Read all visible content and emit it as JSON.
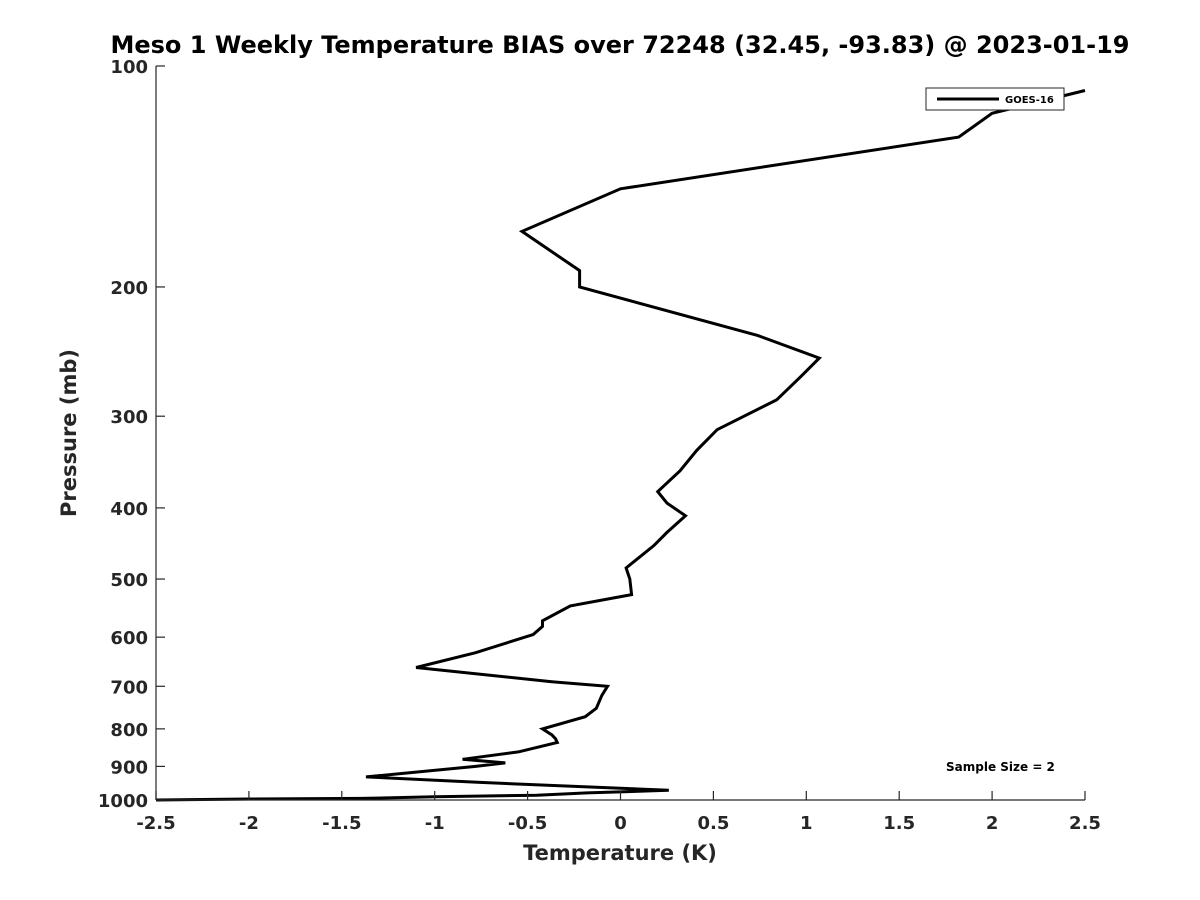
{
  "chart_data": {
    "type": "line",
    "title": "Meso 1 Weekly Temperature BIAS over 72248 (32.45, -93.83) @ 2023-01-19",
    "xlabel": "Temperature (K)",
    "ylabel": "Pressure (mb)",
    "xlim": [
      -2.5,
      2.5
    ],
    "ylim": [
      100,
      1000
    ],
    "y_scale": "log",
    "y_reversed": true,
    "x_ticks": [
      "-2.5",
      "-2",
      "-1.5",
      "-1",
      "-0.5",
      "0",
      "0.5",
      "1",
      "1.5",
      "2",
      "2.5"
    ],
    "x_tick_values": [
      -2.5,
      -2,
      -1.5,
      -1,
      -0.5,
      0,
      0.5,
      1,
      1.5,
      2,
      2.5
    ],
    "y_ticks": [
      "100",
      "200",
      "300",
      "400",
      "500",
      "600",
      "700",
      "800",
      "900",
      "1000"
    ],
    "y_tick_values": [
      100,
      200,
      300,
      400,
      500,
      600,
      700,
      800,
      900,
      1000
    ],
    "grid": false,
    "legend_position": "top-right",
    "annotation": "Sample Size = 2",
    "series": [
      {
        "name": "GOES-16",
        "color": "#000000",
        "points": [
          [
            2.5,
            108
          ],
          [
            2.0,
            116
          ],
          [
            1.82,
            125
          ],
          [
            0.0,
            147
          ],
          [
            -0.53,
            168
          ],
          [
            -0.22,
            190
          ],
          [
            -0.22,
            200
          ],
          [
            0.74,
            233
          ],
          [
            1.07,
            250
          ],
          [
            0.97,
            265
          ],
          [
            0.84,
            285
          ],
          [
            0.52,
            313
          ],
          [
            0.41,
            334
          ],
          [
            0.32,
            356
          ],
          [
            0.2,
            380
          ],
          [
            0.25,
            394
          ],
          [
            0.35,
            410
          ],
          [
            0.25,
            432
          ],
          [
            0.18,
            450
          ],
          [
            0.03,
            483
          ],
          [
            0.05,
            500
          ],
          [
            0.06,
            525
          ],
          [
            -0.27,
            544
          ],
          [
            -0.42,
            570
          ],
          [
            -0.42,
            580
          ],
          [
            -0.47,
            595
          ],
          [
            -0.78,
            630
          ],
          [
            -1.1,
            660
          ],
          [
            -0.37,
            690
          ],
          [
            -0.07,
            700
          ],
          [
            -0.1,
            720
          ],
          [
            -0.13,
            750
          ],
          [
            -0.19,
            770
          ],
          [
            -0.42,
            800
          ],
          [
            -0.37,
            815
          ],
          [
            -0.35,
            825
          ],
          [
            -0.34,
            835
          ],
          [
            -0.55,
            860
          ],
          [
            -0.85,
            880
          ],
          [
            -0.62,
            890
          ],
          [
            -0.78,
            900
          ],
          [
            -1.37,
            930
          ],
          [
            -0.77,
            946
          ],
          [
            0.26,
            970
          ],
          [
            -0.18,
            978
          ],
          [
            -0.45,
            985
          ],
          [
            -1.0,
            990
          ],
          [
            -1.39,
            995
          ],
          [
            -2.0,
            997
          ],
          [
            -2.5,
            1000
          ]
        ]
      }
    ]
  }
}
